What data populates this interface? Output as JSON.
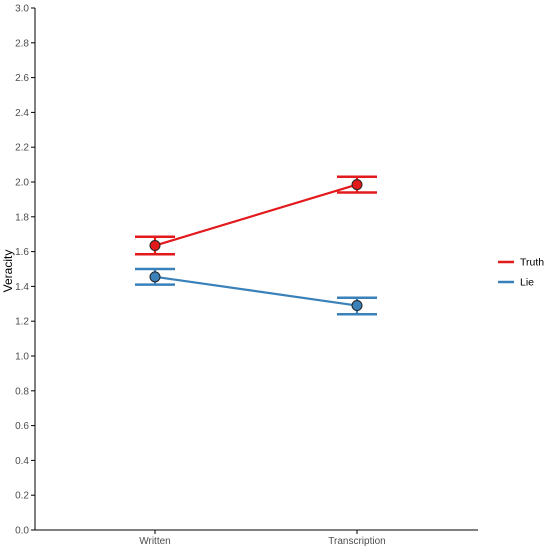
{
  "chart_data": {
    "type": "line",
    "title": "",
    "xlabel": "",
    "ylabel": "Veracity",
    "ylim": [
      0,
      3.0
    ],
    "yticks": [
      "0.0",
      "0.2",
      "0.4",
      "0.6",
      "0.8",
      "1.0",
      "1.2",
      "1.4",
      "1.6",
      "1.8",
      "2.0",
      "2.2",
      "2.4",
      "2.6",
      "2.8",
      "3.0"
    ],
    "categories": [
      "Written",
      "Transcription"
    ],
    "grid": false,
    "legend_position": "right",
    "series": [
      {
        "name": "Truth",
        "color": "#e31a1c",
        "values": [
          1.635,
          1.985
        ],
        "error_low": [
          1.585,
          1.94
        ],
        "error_high": [
          1.685,
          2.03
        ]
      },
      {
        "name": "Lie",
        "color": "#3a81ba",
        "values": [
          1.455,
          1.29
        ],
        "error_low": [
          1.41,
          1.24
        ],
        "error_high": [
          1.5,
          1.335
        ]
      }
    ]
  }
}
